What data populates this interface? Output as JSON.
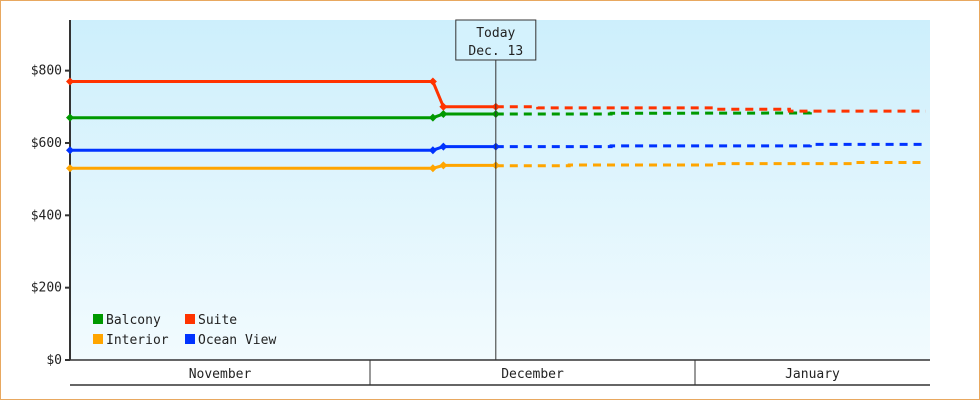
{
  "chart_data": {
    "type": "line",
    "title": "",
    "xlabel": "",
    "ylabel": "",
    "ylim": [
      0,
      940
    ],
    "yticks": [
      0,
      200,
      400,
      600,
      800
    ],
    "ytick_labels": [
      "$0",
      "$200",
      "$400",
      "$600",
      "$800"
    ],
    "months": [
      {
        "label": "November",
        "days": 30
      },
      {
        "label": "December",
        "days": 31
      },
      {
        "label": "January",
        "days": 31
      }
    ],
    "today": {
      "label_line1": "Today",
      "label_line2": "Dec. 13",
      "month": 1,
      "day": 13
    },
    "legend_placement": "bottom-left",
    "grid": false,
    "series": [
      {
        "name": "Balcony",
        "color": "#009900",
        "history": [
          [
            0,
            1,
            670
          ],
          [
            1,
            7,
            670
          ],
          [
            1,
            8,
            680
          ],
          [
            1,
            13,
            680
          ]
        ],
        "forecast": [
          [
            1,
            13,
            680
          ],
          [
            1,
            24,
            680
          ],
          [
            1,
            24,
            682
          ],
          [
            2,
            12,
            683
          ],
          [
            2,
            12,
            685
          ]
        ]
      },
      {
        "name": "Suite",
        "color": "#ff3300",
        "history": [
          [
            0,
            1,
            770
          ],
          [
            1,
            7,
            770
          ],
          [
            1,
            8,
            700
          ],
          [
            1,
            13,
            700
          ]
        ],
        "forecast": [
          [
            1,
            13,
            700
          ],
          [
            1,
            17,
            700
          ],
          [
            1,
            17,
            697
          ],
          [
            2,
            3,
            697
          ],
          [
            2,
            3,
            693
          ],
          [
            2,
            10,
            693
          ],
          [
            2,
            10,
            688
          ],
          [
            2,
            23,
            688
          ]
        ]
      },
      {
        "name": "Interior",
        "color": "#ffa500",
        "history": [
          [
            0,
            1,
            530
          ],
          [
            1,
            7,
            530
          ],
          [
            1,
            8,
            538
          ],
          [
            1,
            13,
            538
          ]
        ],
        "forecast": [
          [
            1,
            13,
            537
          ],
          [
            1,
            20,
            537
          ],
          [
            1,
            20,
            539
          ],
          [
            2,
            3,
            539
          ],
          [
            2,
            3,
            543
          ],
          [
            2,
            16,
            543
          ],
          [
            2,
            16,
            546
          ],
          [
            2,
            23,
            546
          ]
        ]
      },
      {
        "name": "Ocean View",
        "color": "#0033ff",
        "history": [
          [
            0,
            1,
            580
          ],
          [
            1,
            7,
            580
          ],
          [
            1,
            8,
            590
          ],
          [
            1,
            13,
            590
          ]
        ],
        "forecast": [
          [
            1,
            13,
            590
          ],
          [
            1,
            24,
            590
          ],
          [
            1,
            24,
            592
          ],
          [
            2,
            12,
            592
          ],
          [
            2,
            12,
            596
          ],
          [
            2,
            23,
            596
          ]
        ]
      }
    ]
  }
}
